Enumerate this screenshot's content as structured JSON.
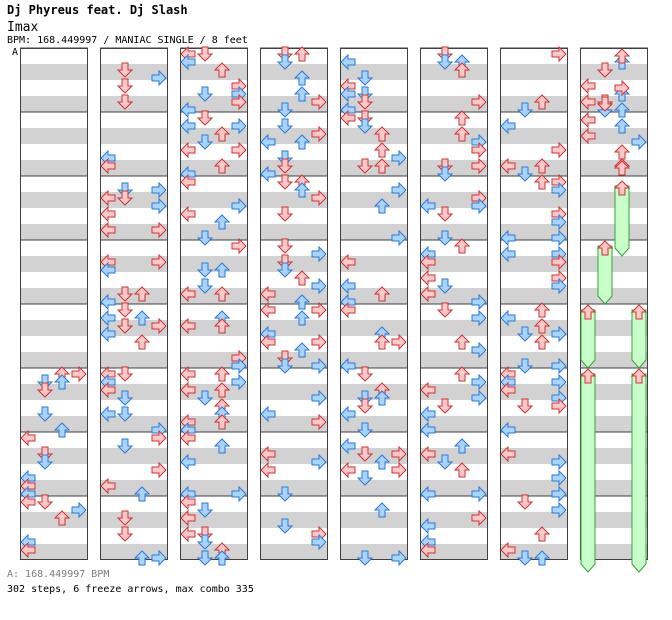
{
  "header": {
    "artist": "Dj Phyreus feat. Dj Slash",
    "song": "Imax",
    "meta": "BPM: 168.449997 / MANIAC SINGLE / 8 feet",
    "bpm_marker": "A"
  },
  "footer": {
    "bpm_line": "A: 168.449997 BPM",
    "stats_line": "302 steps, 6 freeze arrows, max combo 335"
  },
  "colors": {
    "arrow_fill": "#ffc8c8",
    "arrow_stroke": "#cc3333",
    "arrow_alt_fill": "#a8d4ff",
    "arrow_alt_stroke": "#2a78d6",
    "freeze_fill": "#c8ffc8",
    "freeze_stroke": "#3aa03a",
    "band": "#d2d2d2",
    "frame": "#404040"
  },
  "chart_data": {
    "type": "table",
    "columns": 8,
    "measures_per_column": 8,
    "steps": 302,
    "freeze_arrows": 6,
    "max_combo": 335,
    "bpm": 168.449997,
    "difficulty": "MANIAC",
    "mode": "SINGLE",
    "feet": 8
  }
}
